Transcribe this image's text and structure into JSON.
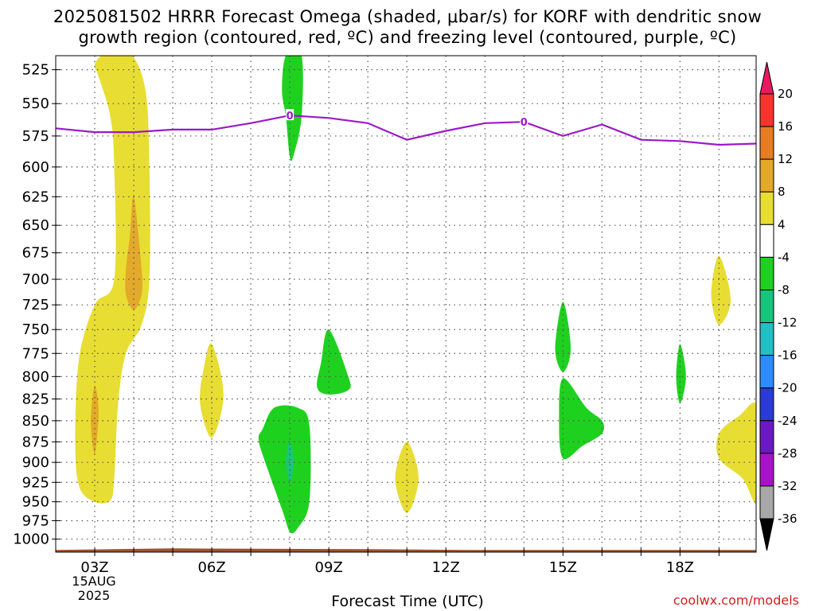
{
  "header": {
    "title_line1": "2025081502 HRRR Forecast Omega (shaded, μbar/s) for KORF with dendritic snow",
    "title_line2": "growth region (contoured, red, ºC) and freezing level (contoured, purple, ºC)"
  },
  "footer": {
    "credit": "coolwx.com/models",
    "first_tick_date": "15AUG",
    "first_tick_year": "2025"
  },
  "chart_data": {
    "type": "heatmap",
    "title": "2025081502 HRRR Forecast Omega (shaded, μbar/s) for KORF with dendritic snow growth region (contoured, red, ºC) and freezing level (contoured, purple, ºC)",
    "xlabel": "Forecast Time (UTC)",
    "ylabel": "",
    "x_ticks": [
      {
        "hour": 3,
        "label": "03Z"
      },
      {
        "hour": 6,
        "label": "06Z"
      },
      {
        "hour": 9,
        "label": "09Z"
      },
      {
        "hour": 12,
        "label": "12Z"
      },
      {
        "hour": 15,
        "label": "15Z"
      },
      {
        "hour": 18,
        "label": "18Z"
      }
    ],
    "xlim": [
      2,
      19.95
    ],
    "y_ticks": [
      525,
      550,
      575,
      600,
      625,
      650,
      675,
      700,
      725,
      750,
      775,
      800,
      825,
      850,
      875,
      900,
      925,
      950,
      975,
      1000
    ],
    "ylim_hpa": [
      515,
      1018
    ],
    "y_scale": "log-pressure, inverted",
    "grid": true,
    "colorbar": {
      "levels": [
        20,
        16,
        12,
        8,
        4,
        -4,
        -8,
        -12,
        -16,
        -20,
        -24,
        -28,
        -32,
        -36
      ],
      "colors": [
        "#e8195f",
        "#f5352d",
        "#e77c22",
        "#e3a92a",
        "#e8dd33",
        "#ffffff",
        "#1fd11f",
        "#19c47d",
        "#22c0c4",
        "#2b8bff",
        "#2b3bd6",
        "#6b19c4",
        "#a813c9",
        "#a8a8a8",
        "#000000"
      ]
    },
    "freezing_level": {
      "color": "#9b19c9",
      "label": "0",
      "points": [
        [
          2.0,
          569
        ],
        [
          3.0,
          572
        ],
        [
          4.0,
          572
        ],
        [
          5.0,
          570
        ],
        [
          6.0,
          570
        ],
        [
          7.0,
          565
        ],
        [
          8.0,
          559
        ],
        [
          9.0,
          561
        ],
        [
          10.0,
          565
        ],
        [
          11.0,
          578
        ],
        [
          12.0,
          571
        ],
        [
          13.0,
          565
        ],
        [
          14.0,
          564
        ],
        [
          15.0,
          575
        ],
        [
          16.0,
          566
        ],
        [
          17.0,
          578
        ],
        [
          18.0,
          579
        ],
        [
          19.0,
          582
        ],
        [
          20.0,
          581
        ]
      ],
      "label_points": [
        [
          8.0,
          559
        ],
        [
          14.0,
          564
        ]
      ]
    },
    "omega_regions": [
      {
        "name": "positive-plume",
        "color": "#e8dd33",
        "points": [
          [
            3.0,
            521
          ],
          [
            3.3,
            513
          ],
          [
            3.9,
            513
          ],
          [
            4.3,
            540
          ],
          [
            4.4,
            600
          ],
          [
            4.4,
            700
          ],
          [
            4.2,
            745
          ],
          [
            3.8,
            775
          ],
          [
            3.6,
            830
          ],
          [
            3.5,
            920
          ],
          [
            3.4,
            948
          ],
          [
            3.0,
            950
          ],
          [
            2.6,
            930
          ],
          [
            2.5,
            870
          ],
          [
            2.6,
            780
          ],
          [
            3.0,
            725
          ],
          [
            3.5,
            700
          ],
          [
            3.5,
            600
          ],
          [
            3.4,
            560
          ],
          [
            3.1,
            530
          ]
        ]
      },
      {
        "name": "positive-core-upper",
        "color": "#e3a92a",
        "points": [
          [
            4.0,
            625
          ],
          [
            4.2,
            690
          ],
          [
            4.2,
            715
          ],
          [
            4.0,
            730
          ],
          [
            3.8,
            715
          ],
          [
            3.8,
            690
          ],
          [
            3.9,
            660
          ]
        ]
      },
      {
        "name": "positive-core-lower",
        "color": "#e3a92a",
        "points": [
          [
            3.0,
            810
          ],
          [
            3.1,
            840
          ],
          [
            3.0,
            890
          ],
          [
            2.9,
            850
          ]
        ]
      },
      {
        "name": "positive-0600",
        "color": "#e8dd33",
        "points": [
          [
            6.0,
            765
          ],
          [
            6.3,
            820
          ],
          [
            6.0,
            870
          ],
          [
            5.7,
            830
          ],
          [
            5.8,
            790
          ]
        ]
      },
      {
        "name": "positive-1100",
        "color": "#e8dd33",
        "points": [
          [
            11.0,
            875
          ],
          [
            11.3,
            920
          ],
          [
            11.0,
            965
          ],
          [
            10.7,
            920
          ]
        ]
      },
      {
        "name": "positive-1900-upper",
        "color": "#e8dd33",
        "points": [
          [
            19.0,
            678
          ],
          [
            19.3,
            720
          ],
          [
            19.0,
            745
          ],
          [
            18.8,
            715
          ]
        ]
      },
      {
        "name": "positive-1900-lower",
        "color": "#e8dd33",
        "points": [
          [
            20.0,
            835
          ],
          [
            20.0,
            950
          ],
          [
            19.6,
            920
          ],
          [
            19.0,
            895
          ],
          [
            19.0,
            865
          ],
          [
            19.5,
            845
          ]
        ]
      },
      {
        "name": "negative-0800-top",
        "color": "#1fd11f",
        "points": [
          [
            7.9,
            515
          ],
          [
            8.3,
            515
          ],
          [
            8.3,
            560
          ],
          [
            8.1,
            590
          ],
          [
            8.0,
            592
          ],
          [
            7.9,
            560
          ],
          [
            7.8,
            540
          ]
        ]
      },
      {
        "name": "negative-0800-low",
        "color": "#1fd11f",
        "points": [
          [
            7.3,
            860
          ],
          [
            7.6,
            835
          ],
          [
            8.2,
            835
          ],
          [
            8.5,
            855
          ],
          [
            8.5,
            950
          ],
          [
            8.2,
            985
          ],
          [
            8.0,
            990
          ],
          [
            7.8,
            960
          ],
          [
            7.3,
            890
          ],
          [
            7.2,
            870
          ]
        ]
      },
      {
        "name": "negative-0800-core",
        "color": "#19c47d",
        "points": [
          [
            8.0,
            875
          ],
          [
            8.1,
            900
          ],
          [
            8.0,
            925
          ],
          [
            7.9,
            900
          ]
        ]
      },
      {
        "name": "negative-0900",
        "color": "#1fd11f",
        "points": [
          [
            9.0,
            750
          ],
          [
            9.5,
            800
          ],
          [
            9.5,
            815
          ],
          [
            9.0,
            820
          ],
          [
            8.7,
            812
          ],
          [
            8.8,
            785
          ]
        ]
      },
      {
        "name": "negative-1500-upper",
        "color": "#1fd11f",
        "points": [
          [
            15.0,
            722
          ],
          [
            15.2,
            770
          ],
          [
            15.0,
            795
          ],
          [
            14.8,
            770
          ]
        ]
      },
      {
        "name": "negative-1500-lower",
        "color": "#1fd11f",
        "points": [
          [
            15.0,
            802
          ],
          [
            15.6,
            835
          ],
          [
            16.0,
            850
          ],
          [
            16.0,
            865
          ],
          [
            15.5,
            880
          ],
          [
            15.0,
            895
          ],
          [
            14.9,
            850
          ]
        ]
      },
      {
        "name": "negative-1800",
        "color": "#1fd11f",
        "points": [
          [
            18.0,
            765
          ],
          [
            18.15,
            800
          ],
          [
            18.0,
            830
          ],
          [
            17.9,
            800
          ]
        ]
      }
    ],
    "terrain": {
      "color": "#a0522d",
      "pressure_hpa": 1015
    }
  }
}
